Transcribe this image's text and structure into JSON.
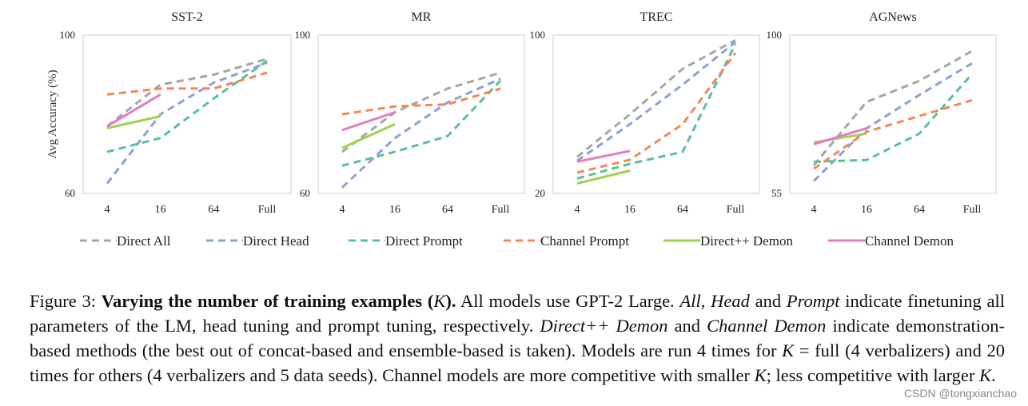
{
  "figure": {
    "ylabel": "Avg Accuracy (%)",
    "xticks": [
      "4",
      "16",
      "64",
      "Full"
    ],
    "colors": {
      "Direct All": "#a6a6a6",
      "Direct Head": "#8ea1d3",
      "Direct Prompt": "#5bbf9c",
      "Channel Prompt": "#f4875a",
      "Direct++ Demon": "#a3d14c",
      "Channel Demon": "#e37ec4"
    },
    "legend": [
      {
        "name": "Direct All",
        "dashed": true
      },
      {
        "name": "Direct Head",
        "dashed": true
      },
      {
        "name": "Direct Prompt",
        "dashed": true
      },
      {
        "name": "Channel Prompt",
        "dashed": true
      },
      {
        "name": "Direct++ Demon",
        "dashed": false
      },
      {
        "name": "Channel Demon",
        "dashed": false
      }
    ]
  },
  "chart_data": [
    {
      "type": "line",
      "title": "SST-2",
      "categories": [
        "4",
        "16",
        "64",
        "Full"
      ],
      "ylim": [
        60,
        100
      ],
      "yticks": [
        "60",
        "100"
      ],
      "ylabel": "Avg Accuracy (%)",
      "series": [
        {
          "name": "Direct All",
          "values": [
            77,
            87.5,
            90,
            94
          ]
        },
        {
          "name": "Direct Head",
          "values": [
            62.5,
            80,
            88,
            93
          ]
        },
        {
          "name": "Direct Prompt",
          "values": [
            70.5,
            74,
            84,
            93.5
          ]
        },
        {
          "name": "Channel Prompt",
          "values": [
            85,
            86.5,
            86.5,
            90.5
          ]
        },
        {
          "name": "Direct++ Demon",
          "values": [
            76.5,
            79.5,
            null,
            null
          ]
        },
        {
          "name": "Channel Demon",
          "values": [
            77,
            85,
            null,
            null
          ]
        }
      ]
    },
    {
      "type": "line",
      "title": "MR",
      "categories": [
        "4",
        "16",
        "64",
        "Full"
      ],
      "ylim": [
        60,
        100
      ],
      "yticks": [
        "60",
        "100"
      ],
      "series": [
        {
          "name": "Direct All",
          "values": [
            70.5,
            80.5,
            86.5,
            90.5
          ]
        },
        {
          "name": "Direct Head",
          "values": [
            61.5,
            74,
            83,
            89
          ]
        },
        {
          "name": "Direct Prompt",
          "values": [
            67,
            70.5,
            74.5,
            88.5
          ]
        },
        {
          "name": "Channel Prompt",
          "values": [
            80,
            82,
            82.5,
            86.5
          ]
        },
        {
          "name": "Direct++ Demon",
          "values": [
            71.5,
            77.5,
            null,
            null
          ]
        },
        {
          "name": "Channel Demon",
          "values": [
            76,
            80.5,
            null,
            null
          ]
        }
      ]
    },
    {
      "type": "line",
      "title": "TREC",
      "categories": [
        "4",
        "16",
        "64",
        "Full"
      ],
      "ylim": [
        20,
        100
      ],
      "yticks": [
        "20",
        "100"
      ],
      "series": [
        {
          "name": "Direct All",
          "values": [
            38.5,
            60,
            83,
            97.5
          ]
        },
        {
          "name": "Direct Head",
          "values": [
            36.5,
            55,
            75,
            96.5
          ]
        },
        {
          "name": "Direct Prompt",
          "values": [
            27.5,
            35,
            41,
            95.5
          ]
        },
        {
          "name": "Channel Prompt",
          "values": [
            30.5,
            37,
            55,
            91
          ]
        },
        {
          "name": "Direct++ Demon",
          "values": [
            25,
            31.5,
            null,
            null
          ]
        },
        {
          "name": "Channel Demon",
          "values": [
            36,
            41.5,
            null,
            null
          ]
        }
      ]
    },
    {
      "type": "line",
      "title": "AGNews",
      "categories": [
        "4",
        "16",
        "64",
        "Full"
      ],
      "ylim": [
        55,
        100
      ],
      "yticks": [
        "55",
        "100"
      ],
      "series": [
        {
          "name": "Direct All",
          "values": [
            63,
            81,
            87,
            95.5
          ]
        },
        {
          "name": "Direct Head",
          "values": [
            58.5,
            73.5,
            83,
            92
          ]
        },
        {
          "name": "Direct Prompt",
          "values": [
            64,
            64.5,
            72,
            89
          ]
        },
        {
          "name": "Channel Prompt",
          "values": [
            62,
            72.5,
            77,
            81.5
          ]
        },
        {
          "name": "Direct++ Demon",
          "values": [
            69.5,
            72,
            null,
            null
          ]
        },
        {
          "name": "Channel Demon",
          "values": [
            69,
            73.5,
            null,
            null
          ]
        }
      ]
    }
  ],
  "caption": {
    "label": "Figure 3: ",
    "bold_title": "Varying the number of training examples",
    "paren_open": " (",
    "k": "K",
    "paren_close": ").",
    "s1": "  All models use GPT-2 Large. ",
    "all": "All",
    "comma1": ", ",
    "head": "Head",
    "and1": " and ",
    "prompt": "Prompt",
    "s2": " indicate finetuning all parameters of the LM, head tuning and prompt tuning, respectively. ",
    "direct_demon": "Direct++ Demon",
    "and2": " and ",
    "channel_demon": "Channel Demon",
    "s3": " indicate demonstration-based methods (the best out of concat-based and ensemble-based is taken). Models are run 4 times for ",
    "k2": "K",
    "s4": " = full (4 verbalizers) and 20 times for others (4 verbalizers and 5 data seeds). Channel models are more competitive with smaller ",
    "k3": "K",
    "s5": "; less competitive with larger ",
    "k4": "K",
    "s6": "."
  },
  "watermark": "CSDN @tongxianchao"
}
